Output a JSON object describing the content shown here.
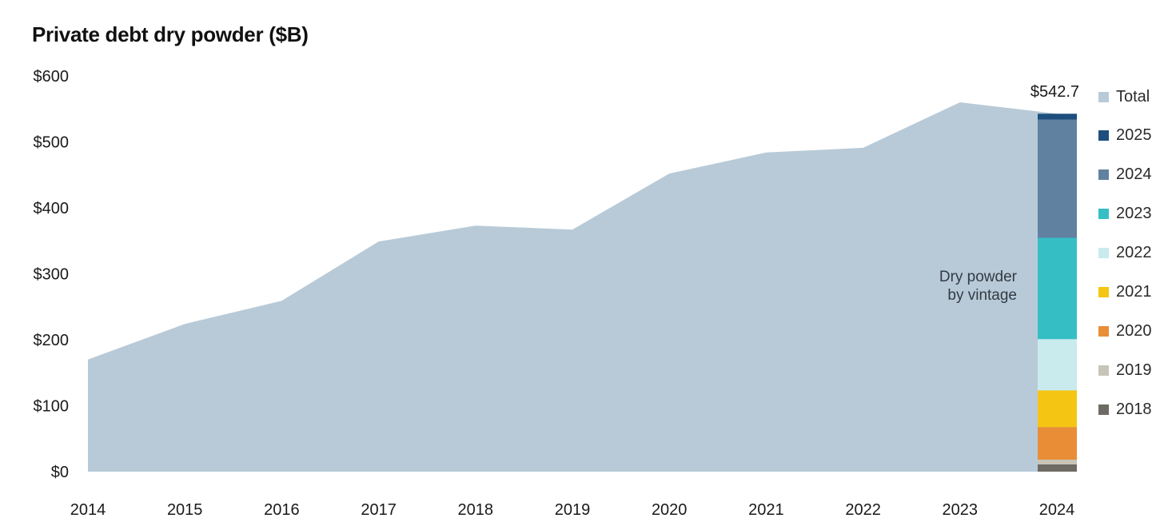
{
  "page": {
    "background": "#ffffff"
  },
  "header": {
    "title": "Private debt dry powder ($B)"
  },
  "annotation": {
    "line1": "Dry powder",
    "line2": "by vintage"
  },
  "bar_total_label": "$542.7",
  "legend": {
    "items": [
      {
        "label": "Total",
        "color": "#b8cad7"
      },
      {
        "label": "2025",
        "color": "#1d4e7e"
      },
      {
        "label": "2024",
        "color": "#6181a1"
      },
      {
        "label": "2023",
        "color": "#35bfc5"
      },
      {
        "label": "2022",
        "color": "#c9ebee"
      },
      {
        "label": "2021",
        "color": "#f5c513"
      },
      {
        "label": "2020",
        "color": "#e98d37"
      },
      {
        "label": "2019",
        "color": "#c8c4b8"
      },
      {
        "label": "2018",
        "color": "#6e6a64"
      }
    ]
  },
  "chart_data": {
    "type": "area",
    "title": "Private debt dry powder ($B)",
    "xlabel": "",
    "ylabel": "",
    "x": [
      "2014",
      "2015",
      "2016",
      "2017",
      "2018",
      "2019",
      "2020",
      "2021",
      "2022",
      "2023",
      "2024"
    ],
    "series": [
      {
        "name": "Total",
        "color": "#b8cad7",
        "values": [
          170,
          224,
          259,
          349,
          373,
          367,
          452,
          484,
          491,
          560,
          542.7
        ]
      }
    ],
    "ylim": [
      0,
      600
    ],
    "yticks": [
      {
        "value": 0,
        "label": "$0"
      },
      {
        "value": 100,
        "label": "$100"
      },
      {
        "value": 200,
        "label": "$200"
      },
      {
        "value": 300,
        "label": "$300"
      },
      {
        "value": 400,
        "label": "$400"
      },
      {
        "value": 500,
        "label": "$500"
      },
      {
        "value": 600,
        "label": "$600"
      }
    ],
    "grid": false,
    "legend_position": "right",
    "stacked_bar": {
      "x": "2024",
      "total": 542.7,
      "total_label": "$542.7",
      "annotation": "Dry powder by vintage",
      "segments_bottom_to_top": [
        {
          "vintage": "2018",
          "value": 10.9,
          "color": "#6e6a64"
        },
        {
          "vintage": "2019",
          "value": 7.3,
          "color": "#c8c4b8"
        },
        {
          "vintage": "2020",
          "value": 49.3,
          "color": "#e98d37"
        },
        {
          "vintage": "2021",
          "value": 55.8,
          "color": "#f5c513"
        },
        {
          "vintage": "2022",
          "value": 77.6,
          "color": "#c9ebee"
        },
        {
          "vintage": "2023",
          "value": 153.6,
          "color": "#35bfc5"
        },
        {
          "vintage": "2024",
          "value": 179.5,
          "color": "#6181a1"
        },
        {
          "vintage": "2025",
          "value": 8.7,
          "color": "#1d4e7e"
        }
      ]
    }
  }
}
